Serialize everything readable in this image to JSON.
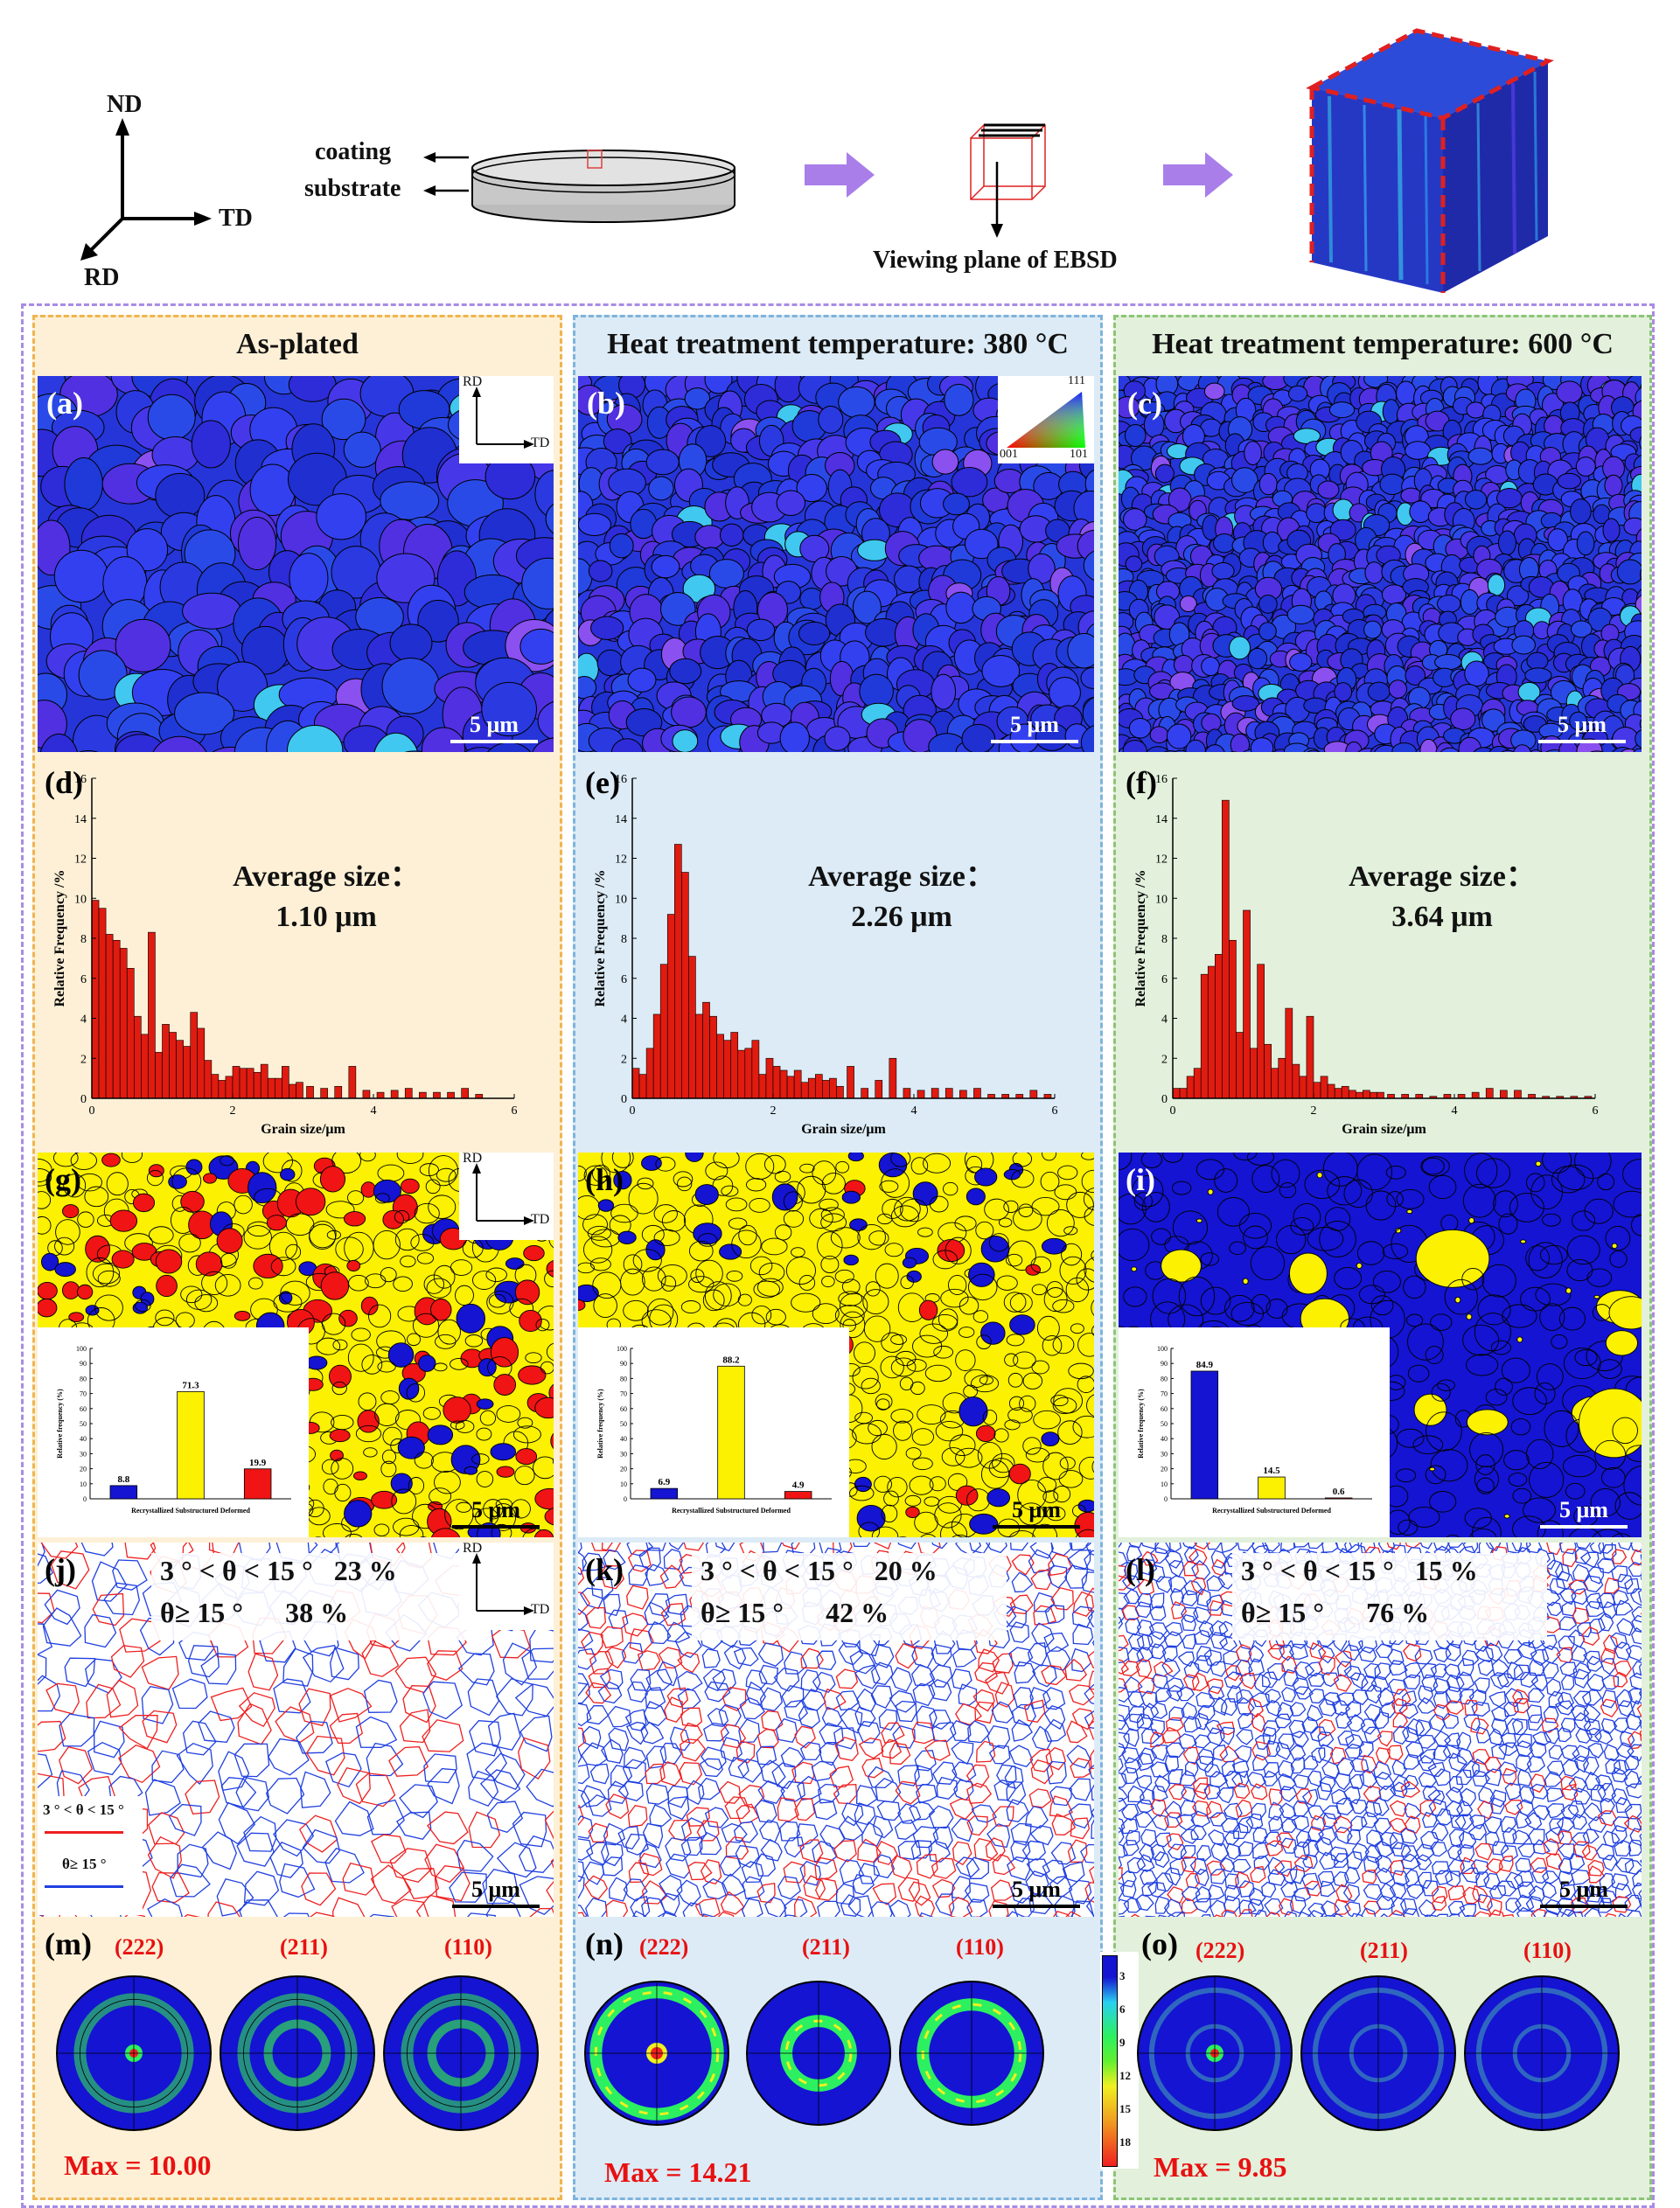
{
  "top": {
    "axes": {
      "nd": "ND",
      "td": "TD",
      "rd": "RD"
    },
    "coating_label": "coating",
    "substrate_label": "substrate",
    "viewing_plane": "Viewing plane of EBSD",
    "arrow_color": "#a97ee9"
  },
  "columns": [
    {
      "title": "As-plated",
      "map_letter": "(a)",
      "hist_letter": "(d)",
      "recrys_letter": "(g)",
      "gb_letter": "(j)",
      "pf_letter": "(m)",
      "scale": "5 μm",
      "avg_label": "Average size：",
      "avg_value": "1.10 μm",
      "recrys_values": [
        "8.8",
        "71.3",
        "19.9"
      ],
      "gb_low": "3 ° < θ < 15 °   23 %",
      "gb_high": "θ≥ 15 °      38 %",
      "pf_max": "Max = 10.00"
    },
    {
      "title": "Heat treatment temperature: 380 °C",
      "map_letter": "(b)",
      "hist_letter": "(e)",
      "recrys_letter": "(h)",
      "gb_letter": "(k)",
      "pf_letter": "(n)",
      "scale": "5 μm",
      "avg_label": "Average size：",
      "avg_value": "2.26 μm",
      "recrys_values": [
        "6.9",
        "88.2",
        "4.9"
      ],
      "gb_low": "3 ° < θ < 15 °   20 %",
      "gb_high": "θ≥ 15 °      42 %",
      "pf_max": "Max = 14.21"
    },
    {
      "title": "Heat treatment temperature: 600 °C",
      "map_letter": "(c)",
      "hist_letter": "(f)",
      "recrys_letter": "(i)",
      "gb_letter": "(l)",
      "pf_letter": "(o)",
      "scale": "5 μm",
      "avg_label": "Average size：",
      "avg_value": "3.64 μm",
      "recrys_values": [
        "84.9",
        "14.5",
        "0.6"
      ],
      "gb_low": "3 ° < θ < 15 °   15 %",
      "gb_high": "θ≥ 15 °      76 %",
      "pf_max": "Max = 9.85"
    }
  ],
  "ipf_key": {
    "top": "111",
    "left": "001",
    "right": "101"
  },
  "map_axes": {
    "rd": "RD",
    "td": "TD"
  },
  "gb_legend": {
    "low": "3 ° < θ < 15 °",
    "high": "θ≥ 15 °"
  },
  "pf_planes": [
    "(222)",
    "(211)",
    "(110)"
  ],
  "pf_colorbar": [
    "3",
    "6",
    "9",
    "12",
    "15",
    "18"
  ],
  "inset_labels": {
    "ylabel": "Relative frequency (%)",
    "xlabel": "Recrystallized Substructured Deformed"
  },
  "colors": {
    "ipf_blue": "#2c3ce0",
    "recrystallized": "#1414d2",
    "substructured": "#fbf100",
    "deformed": "#f01414",
    "hist_bar": "#e01b10",
    "low_angle": "#ee2020",
    "high_angle": "#2040e0"
  },
  "chart_data": [
    {
      "type": "bar",
      "xlabel": "Grain size/μm",
      "ylabel": "Relative Frequency /%",
      "xlim": [
        0,
        6
      ],
      "ylim": [
        0,
        16
      ],
      "xticks": [
        "0",
        "2",
        "4",
        "6"
      ],
      "yticks": [
        "0",
        "2",
        "4",
        "6",
        "8",
        "10",
        "12",
        "14",
        "16"
      ],
      "x": [
        0.05,
        0.15,
        0.25,
        0.35,
        0.45,
        0.55,
        0.65,
        0.75,
        0.85,
        0.95,
        1.05,
        1.15,
        1.25,
        1.35,
        1.45,
        1.55,
        1.65,
        1.75,
        1.85,
        1.95,
        2.05,
        2.15,
        2.25,
        2.35,
        2.45,
        2.55,
        2.65,
        2.75,
        2.85,
        2.95,
        3.1,
        3.3,
        3.5,
        3.7,
        3.9,
        4.1,
        4.3,
        4.5,
        4.7,
        4.9,
        5.1,
        5.3,
        5.5
      ],
      "values": [
        9.9,
        9.5,
        8.2,
        7.9,
        7.5,
        6.5,
        4.1,
        3.2,
        8.3,
        2.3,
        3.7,
        3.3,
        2.9,
        2.6,
        4.3,
        3.5,
        1.9,
        1.2,
        0.9,
        1.1,
        1.6,
        1.5,
        1.5,
        1.3,
        1.7,
        1.0,
        1.0,
        1.6,
        0.7,
        0.8,
        0.6,
        0.5,
        0.6,
        1.6,
        0.4,
        0.3,
        0.4,
        0.5,
        0.3,
        0.3,
        0.3,
        0.5,
        0.2
      ]
    },
    {
      "type": "bar",
      "xlabel": "Grain size/μm",
      "ylabel": "Relative Frequency /%",
      "xlim": [
        0,
        6
      ],
      "ylim": [
        0,
        16
      ],
      "xticks": [
        "0",
        "2",
        "4",
        "6"
      ],
      "yticks": [
        "0",
        "2",
        "4",
        "6",
        "8",
        "10",
        "12",
        "14",
        "16"
      ],
      "x": [
        0.05,
        0.15,
        0.25,
        0.35,
        0.45,
        0.55,
        0.65,
        0.75,
        0.85,
        0.95,
        1.05,
        1.15,
        1.25,
        1.35,
        1.45,
        1.55,
        1.65,
        1.75,
        1.85,
        1.95,
        2.05,
        2.15,
        2.25,
        2.35,
        2.45,
        2.55,
        2.65,
        2.75,
        2.85,
        2.95,
        3.1,
        3.3,
        3.5,
        3.7,
        3.9,
        4.1,
        4.3,
        4.5,
        4.7,
        4.9,
        5.1,
        5.3,
        5.5,
        5.7,
        5.9
      ],
      "values": [
        1.5,
        1.2,
        2.5,
        4.2,
        6.7,
        9.2,
        12.7,
        11.3,
        7.1,
        4.2,
        4.8,
        4.1,
        3.2,
        2.9,
        3.3,
        2.4,
        2.5,
        2.9,
        1.2,
        2.0,
        1.6,
        1.4,
        1.1,
        1.4,
        0.8,
        1.0,
        1.2,
        0.9,
        1.0,
        0.6,
        1.6,
        0.5,
        0.9,
        2.0,
        0.5,
        0.4,
        0.5,
        0.5,
        0.4,
        0.5,
        0.2,
        0.2,
        0.2,
        0.4,
        0.2
      ]
    },
    {
      "type": "bar",
      "xlabel": "Grain size/μm",
      "ylabel": "Relative Frequency /%",
      "xlim": [
        0,
        6
      ],
      "ylim": [
        0,
        16
      ],
      "xticks": [
        "0",
        "2",
        "4",
        "6"
      ],
      "yticks": [
        "0",
        "2",
        "4",
        "6",
        "8",
        "10",
        "12",
        "14",
        "16"
      ],
      "x": [
        0.05,
        0.15,
        0.25,
        0.35,
        0.45,
        0.55,
        0.65,
        0.75,
        0.85,
        0.95,
        1.05,
        1.15,
        1.25,
        1.35,
        1.45,
        1.55,
        1.65,
        1.75,
        1.85,
        1.95,
        2.05,
        2.15,
        2.25,
        2.35,
        2.45,
        2.55,
        2.65,
        2.75,
        2.85,
        2.95,
        3.1,
        3.3,
        3.5,
        3.7,
        3.9,
        4.1,
        4.3,
        4.5,
        4.7,
        4.9,
        5.1,
        5.3,
        5.5,
        5.7,
        5.9
      ],
      "values": [
        0.5,
        0.5,
        1.1,
        1.5,
        6.2,
        6.6,
        7.2,
        14.9,
        7.9,
        3.3,
        9.4,
        2.5,
        6.7,
        2.7,
        1.5,
        2.0,
        4.5,
        1.7,
        1.1,
        4.1,
        0.8,
        1.1,
        0.7,
        0.5,
        0.6,
        0.4,
        0.3,
        0.4,
        0.3,
        0.3,
        0.2,
        0.2,
        0.2,
        0.1,
        0.2,
        0.2,
        0.3,
        0.5,
        0.4,
        0.4,
        0.2,
        0.1,
        0.1,
        0.1,
        0.1
      ]
    },
    {
      "type": "bar",
      "categories": [
        "Recrystallized",
        "Substructured",
        "Deformed"
      ],
      "series": [
        {
          "values": [
            8.8,
            71.3,
            19.9
          ]
        },
        {
          "values": [
            6.9,
            88.2,
            4.9
          ]
        },
        {
          "values": [
            84.9,
            14.5,
            0.6
          ]
        }
      ],
      "ylabel": "Relative frequency (%)",
      "ylim": [
        0,
        100
      ],
      "yticks": [
        "0",
        "10",
        "20",
        "30",
        "40",
        "50",
        "60",
        "70",
        "80",
        "90",
        "100"
      ]
    }
  ]
}
